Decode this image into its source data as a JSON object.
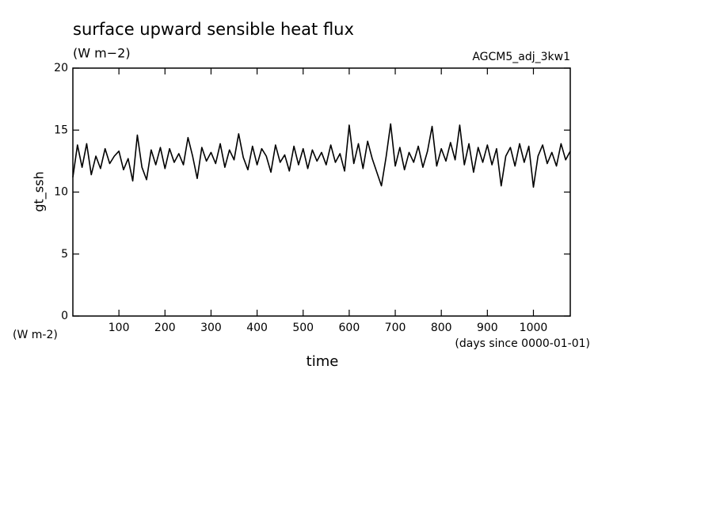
{
  "chart_data": {
    "type": "line",
    "title": "surface upward sensible heat flux",
    "subtitle": "(W m−2)",
    "experiment": "AGCM5_adj_3kw1",
    "y_label": "gt_ssh",
    "y_units": "(W m-2)",
    "x_label": "time",
    "x_units": "(days since 0000-01-01)",
    "xlim": [
      0,
      1080
    ],
    "xticks": [
      100,
      200,
      300,
      400,
      500,
      600,
      700,
      800,
      900,
      1000
    ],
    "ylim": [
      0,
      20
    ],
    "yticks": [
      0,
      5,
      10,
      15,
      20
    ],
    "color": "#000000",
    "x": [
      0,
      10,
      20,
      30,
      40,
      50,
      60,
      70,
      80,
      90,
      100,
      110,
      120,
      130,
      140,
      150,
      160,
      170,
      180,
      190,
      200,
      210,
      220,
      230,
      240,
      250,
      260,
      270,
      280,
      290,
      300,
      310,
      320,
      330,
      340,
      350,
      360,
      370,
      380,
      390,
      400,
      410,
      420,
      430,
      440,
      450,
      460,
      470,
      480,
      490,
      500,
      510,
      520,
      530,
      540,
      550,
      560,
      570,
      580,
      590,
      600,
      610,
      620,
      630,
      640,
      650,
      660,
      670,
      680,
      690,
      700,
      710,
      720,
      730,
      740,
      750,
      760,
      770,
      780,
      790,
      800,
      810,
      820,
      830,
      840,
      850,
      860,
      870,
      880,
      890,
      900,
      910,
      920,
      930,
      940,
      950,
      960,
      970,
      980,
      990,
      1000,
      1010,
      1020,
      1030,
      1040,
      1050,
      1060,
      1070,
      1080
    ],
    "values": [
      11.2,
      13.8,
      12.0,
      13.9,
      11.4,
      12.9,
      11.9,
      13.5,
      12.3,
      12.9,
      13.3,
      11.8,
      12.7,
      10.9,
      14.6,
      12.0,
      11.0,
      13.4,
      12.2,
      13.6,
      11.9,
      13.5,
      12.4,
      13.1,
      12.2,
      14.4,
      12.9,
      11.1,
      13.6,
      12.5,
      13.2,
      12.3,
      13.9,
      12.0,
      13.4,
      12.6,
      14.7,
      12.8,
      11.8,
      13.7,
      12.2,
      13.5,
      12.9,
      11.6,
      13.8,
      12.4,
      13.0,
      11.7,
      13.7,
      12.2,
      13.5,
      11.9,
      13.4,
      12.5,
      13.2,
      12.2,
      13.8,
      12.4,
      13.1,
      11.7,
      15.4,
      12.3,
      13.9,
      11.9,
      14.1,
      12.7,
      11.6,
      10.5,
      12.8,
      15.5,
      12.1,
      13.6,
      11.8,
      13.2,
      12.4,
      13.7,
      12.0,
      13.3,
      15.3,
      12.1,
      13.5,
      12.5,
      14.0,
      12.6,
      15.4,
      12.2,
      13.9,
      11.6,
      13.6,
      12.4,
      13.8,
      12.2,
      13.5,
      10.5,
      12.9,
      13.6,
      12.1,
      13.9,
      12.4,
      13.7,
      10.4,
      12.9,
      13.8,
      12.3,
      13.2,
      12.1,
      13.9,
      12.6,
      13.3
    ]
  }
}
